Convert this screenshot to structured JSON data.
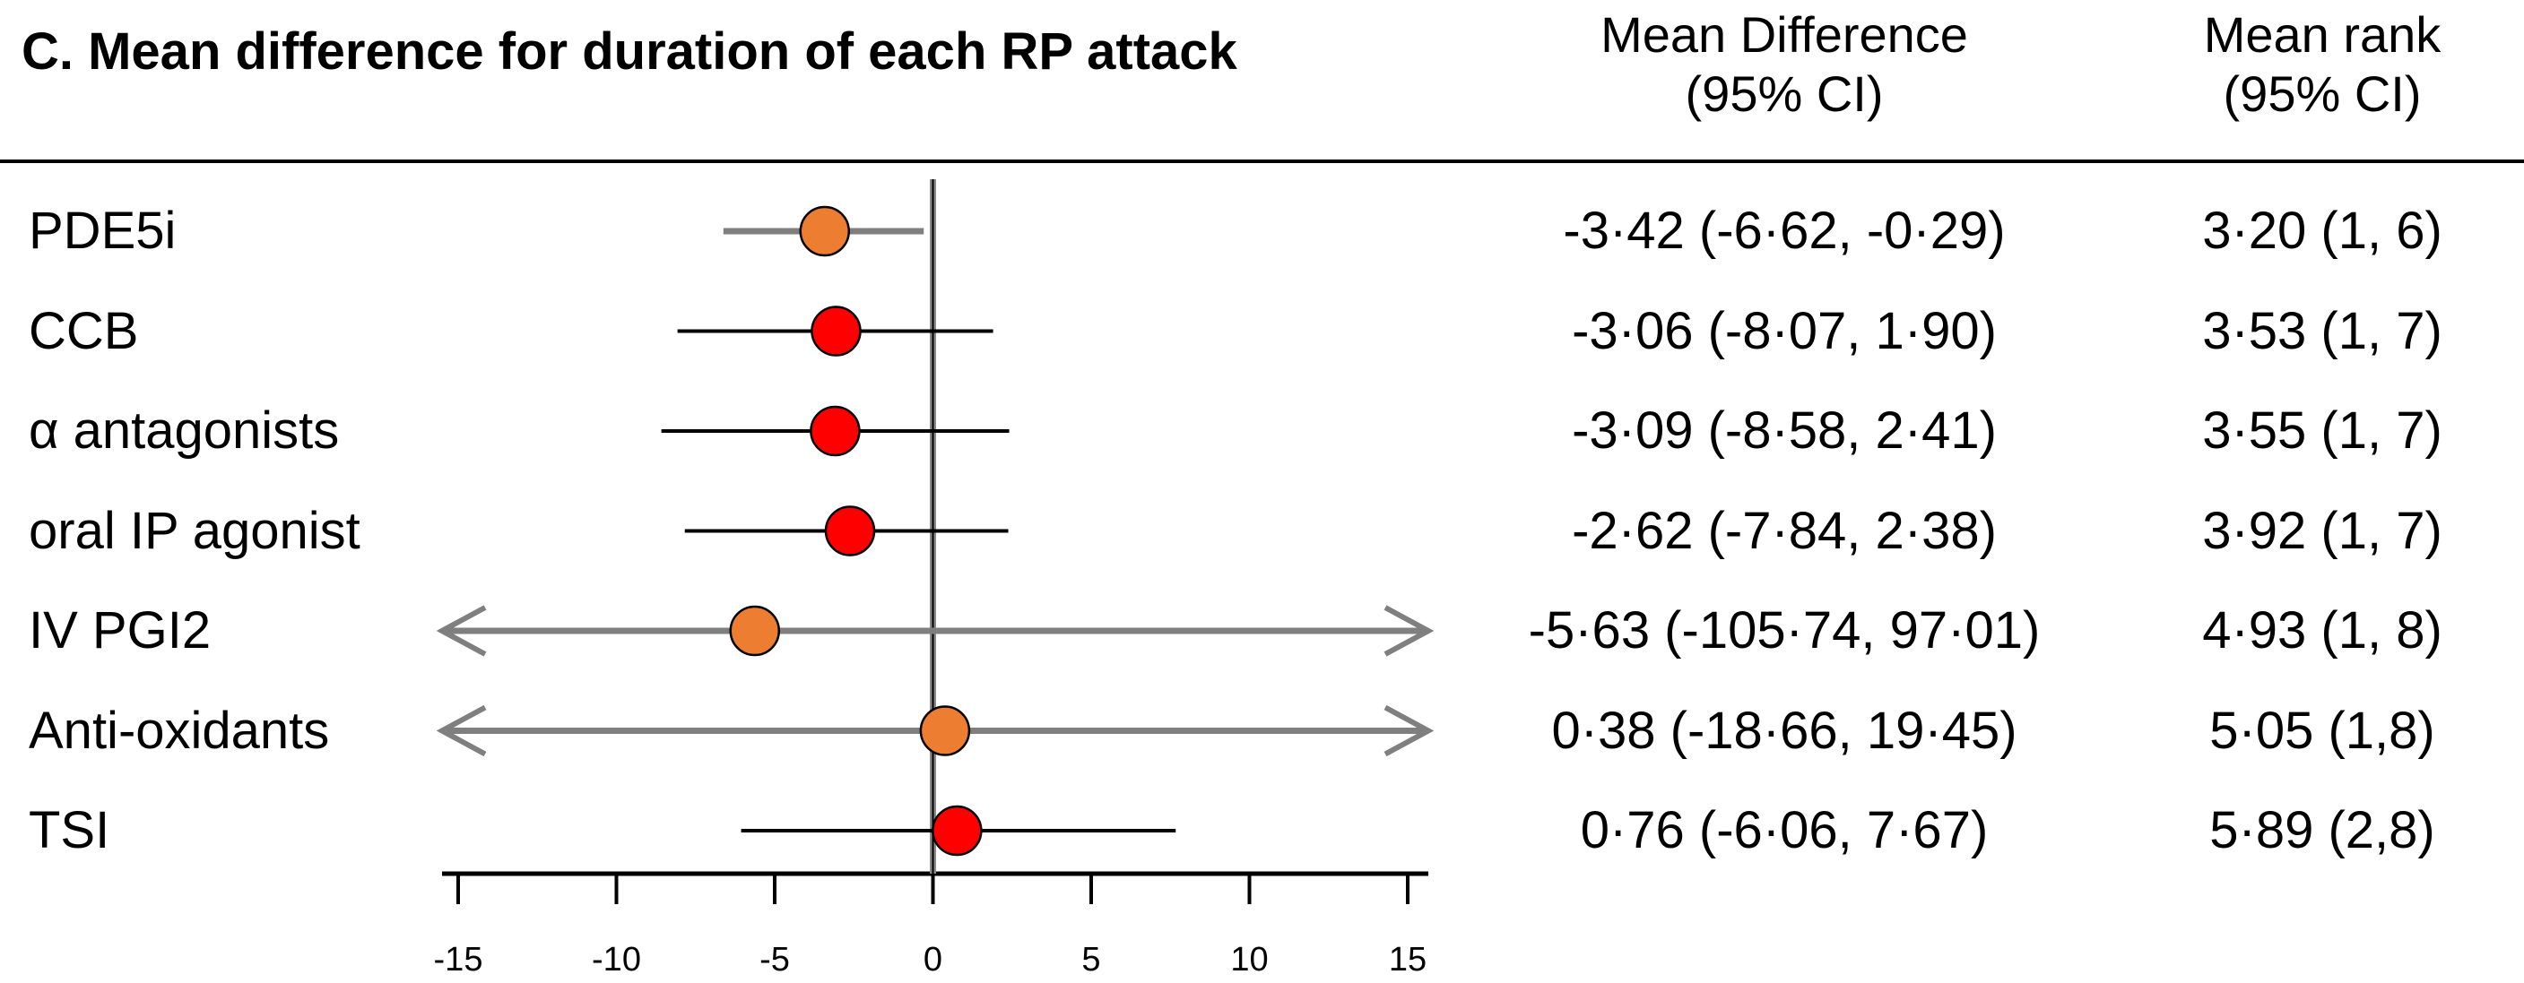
{
  "title": "C. Mean difference for duration of each RP attack",
  "headers": {
    "mean_difference": [
      "Mean Difference",
      "(95% CI)"
    ],
    "mean_rank": [
      "Mean rank",
      "(95% CI)"
    ]
  },
  "colors": {
    "orange": "#ED7D31",
    "red": "#FF0000",
    "ci_gray": "#7f7f7f",
    "ci_black": "#000000"
  },
  "chart_data": {
    "type": "forest",
    "title": "C. Mean difference for duration of each RP attack",
    "xlim": [
      -15,
      15
    ],
    "xticks": [
      -15,
      -10,
      -5,
      0,
      5,
      10,
      15
    ],
    "reference_line": 0,
    "rows": [
      {
        "label": "PDE5i",
        "mean": -3.42,
        "lower": -6.62,
        "upper": -0.29,
        "marker_color": "orange",
        "ci_color": "gray",
        "md_text": "-3·42 (-6·62, -0·29)",
        "rank_text": "3·20 (1, 6)"
      },
      {
        "label": "CCB",
        "mean": -3.06,
        "lower": -8.07,
        "upper": 1.9,
        "marker_color": "red",
        "ci_color": "black",
        "md_text": "-3·06 (-8·07, 1·90)",
        "rank_text": "3·53 (1, 7)"
      },
      {
        "label": "α antagonists",
        "mean": -3.09,
        "lower": -8.58,
        "upper": 2.41,
        "marker_color": "red",
        "ci_color": "black",
        "md_text": "-3·09 (-8·58, 2·41)",
        "rank_text": "3·55 (1, 7)"
      },
      {
        "label": "oral IP agonist",
        "mean": -2.62,
        "lower": -7.84,
        "upper": 2.38,
        "marker_color": "red",
        "ci_color": "black",
        "md_text": "-2·62 (-7·84, 2·38)",
        "rank_text": "3·92 (1, 7)"
      },
      {
        "label": "IV PGI2",
        "mean": -5.63,
        "lower": -105.74,
        "upper": 97.01,
        "marker_color": "orange",
        "ci_color": "gray",
        "arrow_left": true,
        "arrow_right": true,
        "md_text": "-5·63 (-105·74, 97·01)",
        "rank_text": "4·93 (1, 8)"
      },
      {
        "label": "Anti-oxidants",
        "mean": 0.38,
        "lower": -18.66,
        "upper": 19.45,
        "marker_color": "orange",
        "ci_color": "gray",
        "arrow_left": true,
        "arrow_right": true,
        "md_text": "0·38 (-18·66, 19·45)",
        "rank_text": "5·05 (1,8)"
      },
      {
        "label": "TSI",
        "mean": 0.76,
        "lower": -6.06,
        "upper": 7.67,
        "marker_color": "red",
        "ci_color": "black",
        "md_text": "0·76 (-6·06, 7·67)",
        "rank_text": "5·89 (2,8)"
      }
    ]
  }
}
